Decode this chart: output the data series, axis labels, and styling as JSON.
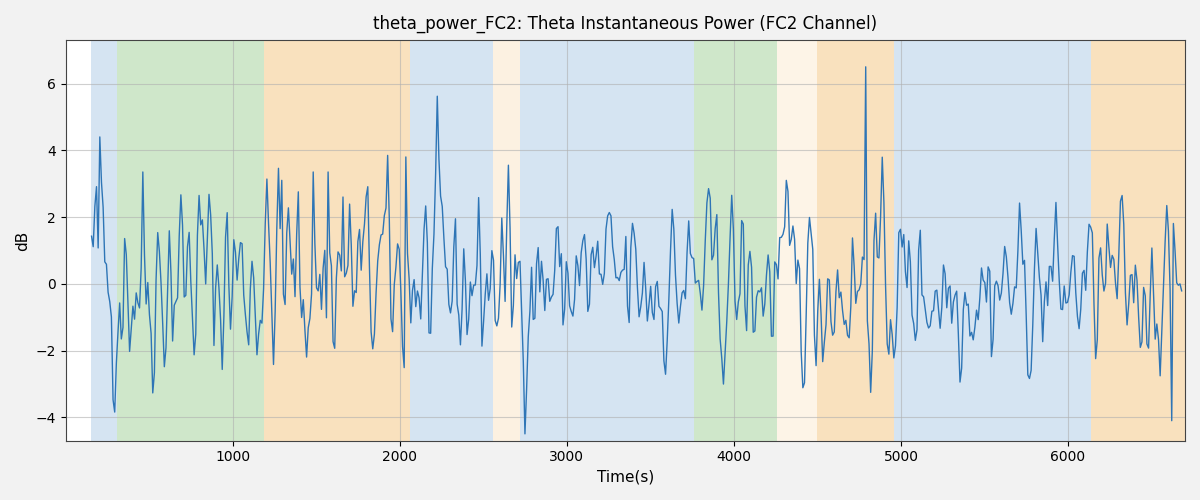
{
  "title": "theta_power_FC2: Theta Instantaneous Power (FC2 Channel)",
  "xlabel": "Time(s)",
  "ylabel": "dB",
  "xlim": [
    0,
    6700
  ],
  "ylim": [
    -4.7,
    7.3
  ],
  "yticks": [
    -4,
    -2,
    0,
    2,
    4,
    6
  ],
  "xticks": [
    1000,
    2000,
    3000,
    4000,
    5000,
    6000
  ],
  "bg_bands": [
    {
      "xmin": 150,
      "xmax": 310,
      "color": "#b3cfe8",
      "alpha": 0.55
    },
    {
      "xmin": 310,
      "xmax": 1190,
      "color": "#a8d4a0",
      "alpha": 0.55
    },
    {
      "xmin": 1190,
      "xmax": 2060,
      "color": "#f5c98a",
      "alpha": 0.55
    },
    {
      "xmin": 2060,
      "xmax": 2560,
      "color": "#b3cfe8",
      "alpha": 0.55
    },
    {
      "xmin": 2560,
      "xmax": 2720,
      "color": "#f5c98a",
      "alpha": 0.25
    },
    {
      "xmin": 2720,
      "xmax": 3680,
      "color": "#b3cfe8",
      "alpha": 0.55
    },
    {
      "xmin": 3680,
      "xmax": 3760,
      "color": "#b3cfe8",
      "alpha": 0.55
    },
    {
      "xmin": 3760,
      "xmax": 4260,
      "color": "#a8d4a0",
      "alpha": 0.55
    },
    {
      "xmin": 4260,
      "xmax": 4500,
      "color": "#f5c98a",
      "alpha": 0.2
    },
    {
      "xmin": 4500,
      "xmax": 4960,
      "color": "#f5c98a",
      "alpha": 0.55
    },
    {
      "xmin": 4960,
      "xmax": 6140,
      "color": "#b3cfe8",
      "alpha": 0.55
    },
    {
      "xmin": 6140,
      "xmax": 6700,
      "color": "#f5c98a",
      "alpha": 0.55
    }
  ],
  "line_color": "#2e75b6",
  "line_width": 1.0,
  "grid_color": "#b0b0b0",
  "grid_alpha": 0.6,
  "seed": 42,
  "bg_color": "#ffffff",
  "fig_facecolor": "#f2f2f2"
}
